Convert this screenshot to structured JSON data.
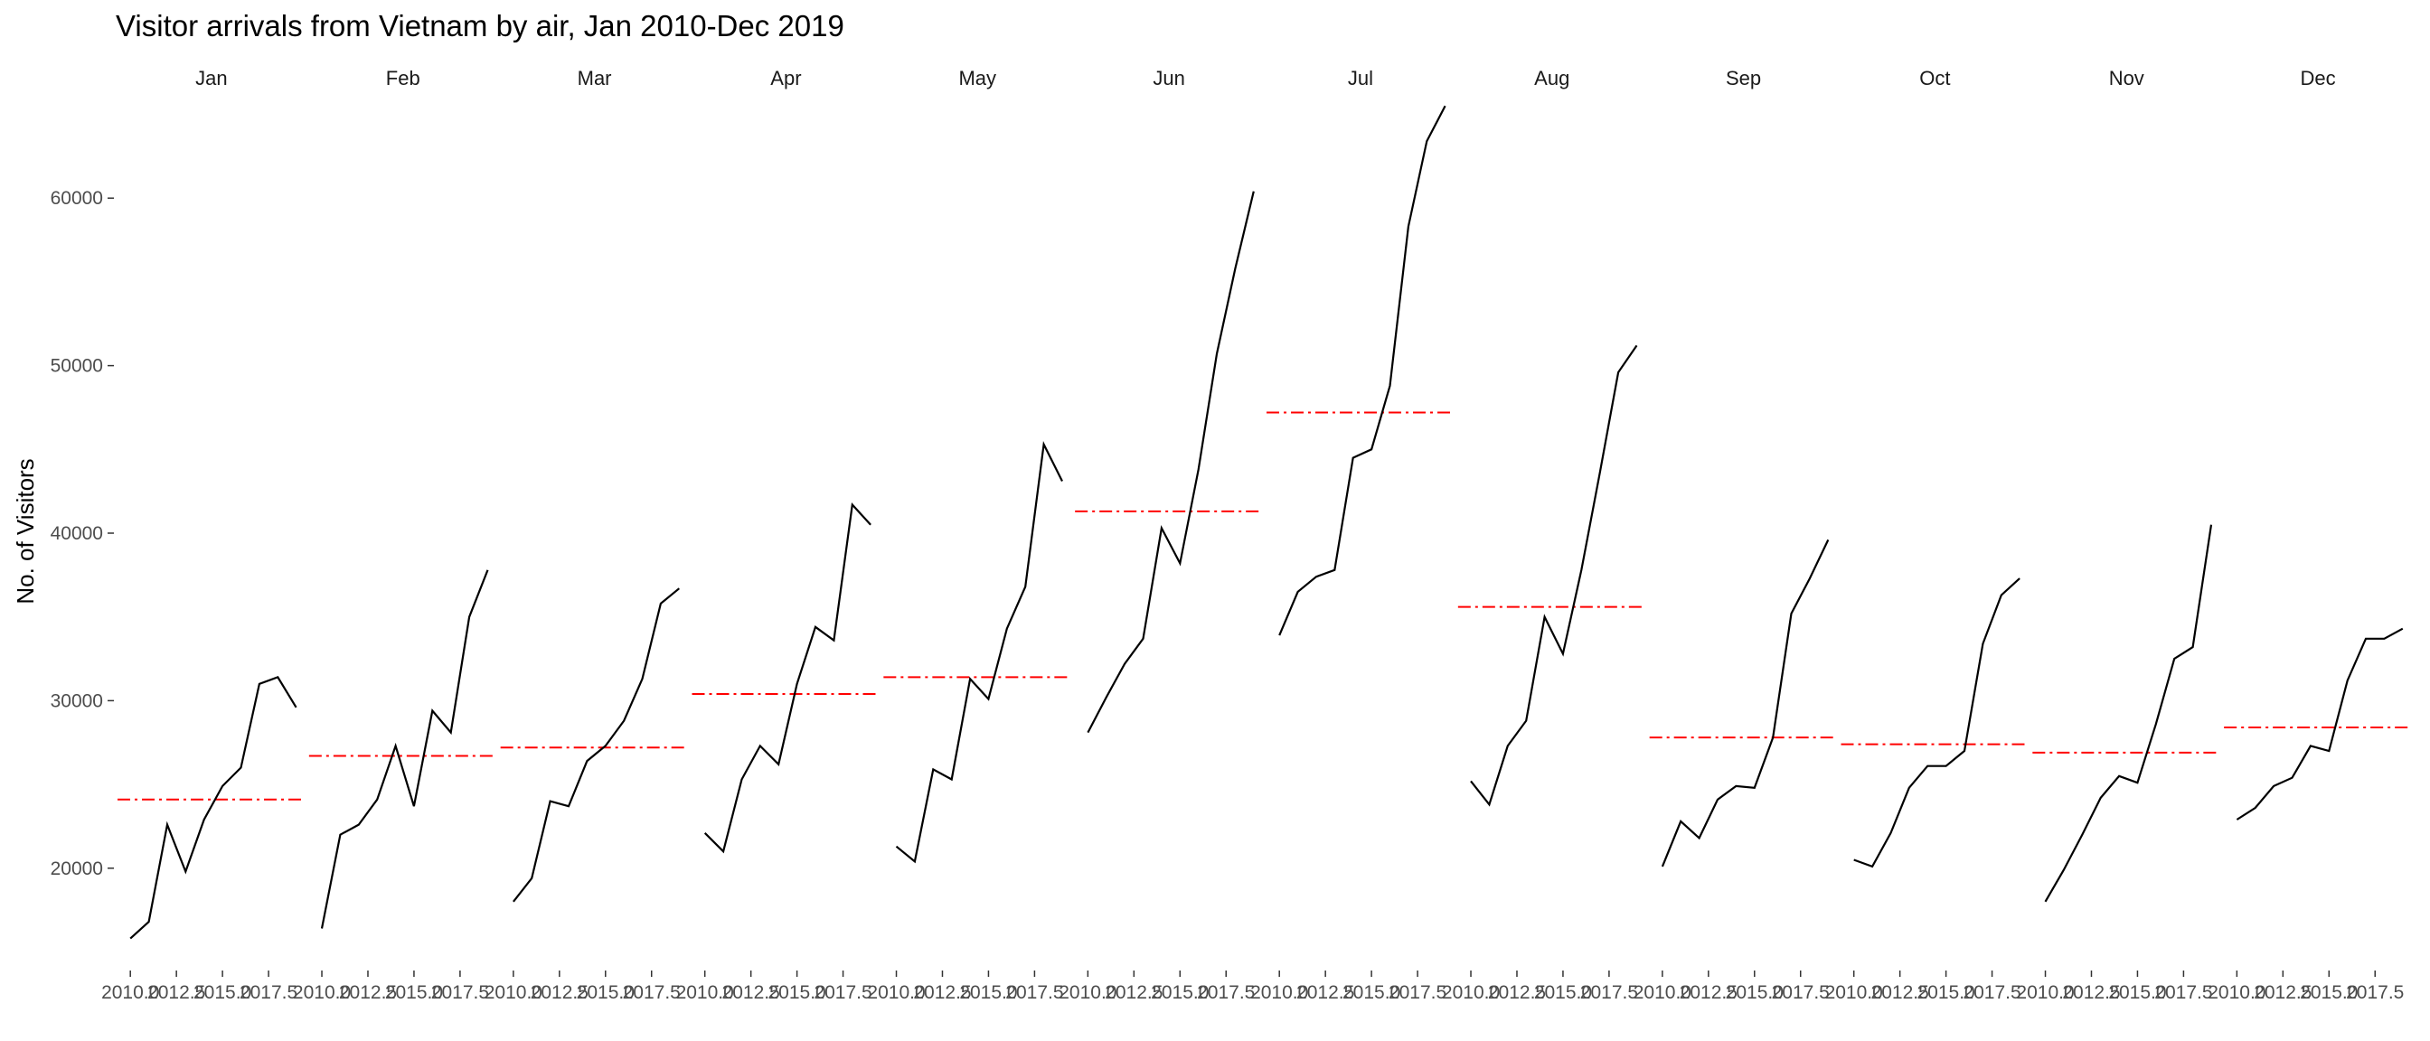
{
  "chart_data": {
    "type": "line",
    "title": "Visitor arrivals from Vietnam by air, Jan 2010-Dec 2019",
    "xlabel": "",
    "ylabel": "No. of Visitors",
    "ylim": [
      14000,
      66000
    ],
    "yticks": [
      20000,
      30000,
      40000,
      50000,
      60000
    ],
    "xlim": [
      2009.5,
      2019.5
    ],
    "xticks": [
      2010.0,
      2012.5,
      2015.0,
      2017.5
    ],
    "xtick_labels": [
      "2010.0",
      "2012.5",
      "2015.0",
      "2017.5"
    ],
    "x": [
      2010,
      2011,
      2012,
      2013,
      2014,
      2015,
      2016,
      2017,
      2018,
      2019
    ],
    "grid": false,
    "legend": "none",
    "series_color": "#000000",
    "mean_color": "#ff0000",
    "panels": [
      {
        "name": "Jan",
        "values": [
          15800,
          16800,
          22600,
          19800,
          22900,
          24900,
          26000,
          31000,
          31400,
          29600
        ],
        "mean": 24100
      },
      {
        "name": "Feb",
        "values": [
          16400,
          22000,
          22600,
          24100,
          27300,
          23700,
          29400,
          28100,
          35000,
          37800
        ],
        "mean": 26700
      },
      {
        "name": "Mar",
        "values": [
          18000,
          19400,
          24000,
          23700,
          26400,
          27300,
          28800,
          31300,
          35800,
          36700
        ],
        "mean": 27200
      },
      {
        "name": "Apr",
        "values": [
          22100,
          21000,
          25300,
          27300,
          26200,
          31000,
          34400,
          33600,
          41700,
          40500
        ],
        "mean": 30400
      },
      {
        "name": "May",
        "values": [
          21300,
          20400,
          25900,
          25300,
          31300,
          30100,
          34300,
          36800,
          45300,
          43100
        ],
        "mean": 31400
      },
      {
        "name": "Jun",
        "values": [
          28100,
          30200,
          32200,
          33700,
          40300,
          38200,
          43800,
          50700,
          55800,
          60400
        ],
        "mean": 41300
      },
      {
        "name": "Jul",
        "values": [
          33900,
          36500,
          37400,
          37800,
          44500,
          45000,
          48800,
          58300,
          63400,
          65500
        ],
        "mean": 47200
      },
      {
        "name": "Aug",
        "values": [
          25200,
          23800,
          27300,
          28800,
          35000,
          32800,
          37800,
          43600,
          49600,
          51200
        ],
        "mean": 35600
      },
      {
        "name": "Sep",
        "values": [
          20100,
          22800,
          21800,
          24100,
          24900,
          24800,
          27800,
          35200,
          37300,
          39600
        ],
        "mean": 27800
      },
      {
        "name": "Oct",
        "values": [
          20500,
          20100,
          22100,
          24800,
          26100,
          26100,
          27000,
          33400,
          36300,
          37300
        ],
        "mean": 27400
      },
      {
        "name": "Nov",
        "values": [
          18000,
          19900,
          22000,
          24200,
          25500,
          25100,
          28600,
          32500,
          33200,
          40500
        ],
        "mean": 26900
      },
      {
        "name": "Dec",
        "values": [
          22900,
          23600,
          24900,
          25400,
          27300,
          27000,
          31200,
          33700,
          33700,
          34300
        ],
        "mean": 28400
      }
    ]
  }
}
